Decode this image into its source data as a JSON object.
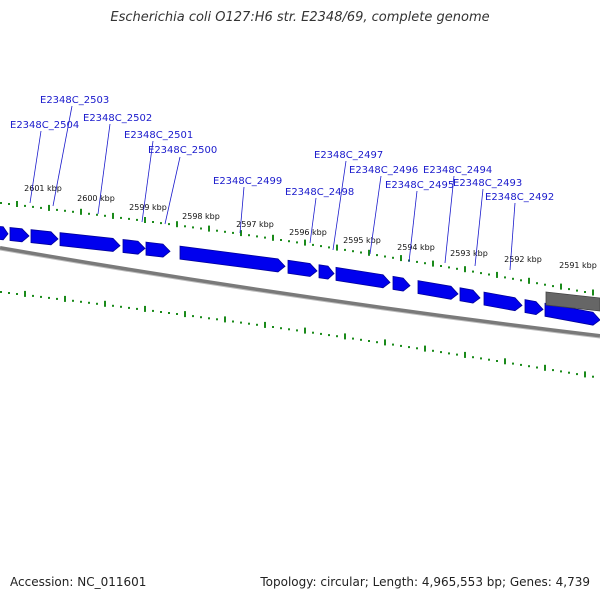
{
  "title": "Escherichia coli O127:H6 str. E2348/69, complete genome",
  "footer": {
    "accession": "Accession: NC_011601",
    "summary": "Topology: circular; Length: 4,965,553 bp; Genes: 4,739"
  },
  "colors": {
    "gene": "#0000ee",
    "gene_stroke": "#00009a",
    "gc_ticks": "#1a8a1a",
    "backbone": "#7a7a7a",
    "label": "#1a1acc",
    "gray_feature": "#666666"
  },
  "scale_ticks": [
    "2601 kbp",
    "2600 kbp",
    "2599 kbp",
    "2598 kbp",
    "2597 kbp",
    "2596 kbp",
    "2595 kbp",
    "2594 kbp",
    "2593 kbp",
    "2592 kbp",
    "2591 kbp"
  ],
  "gene_labels": [
    "E2348C_2504",
    "E2348C_2503",
    "E2348C_2502",
    "E2348C_2501",
    "E2348C_2500",
    "E2348C_2499",
    "E2348C_2498",
    "E2348C_2497",
    "E2348C_2496",
    "E2348C_2495",
    "E2348C_2494",
    "E2348C_2493",
    "E2348C_2492"
  ]
}
